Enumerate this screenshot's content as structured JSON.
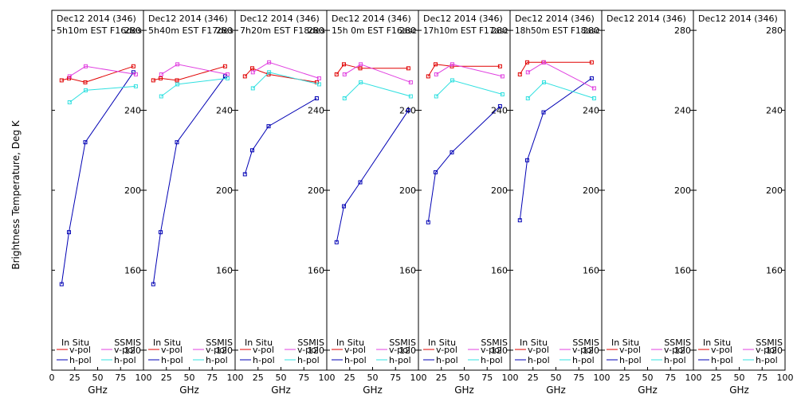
{
  "figure": {
    "ylabel": "Brightness Temperature, Deg K",
    "xlabel": "GHz",
    "legend_headers": {
      "in_situ": "In Situ",
      "ssmis": "SSMIS"
    },
    "legend_labels": {
      "vpol": "v-pol",
      "hpol": "h-pol"
    },
    "colors": {
      "insitu_v": "#e00000",
      "insitu_h": "#0000b4",
      "ssmis_v": "#e040e0",
      "ssmis_h": "#30e0e0",
      "axis": "#000000",
      "background": "#ffffff"
    }
  },
  "chart_data": {
    "type": "line",
    "title": "Dec12 2014 (346)",
    "xlabel": "GHz",
    "ylabel": "Brightness Temperature, Deg K",
    "xlim": [
      0,
      100
    ],
    "ylim": [
      110,
      290
    ],
    "x_ticks": [
      0,
      25,
      50,
      75,
      100
    ],
    "y_ticks": [
      120,
      160,
      200,
      240,
      280
    ],
    "panels": [
      {
        "title": "Dec12 2014 (346)",
        "subtitle": "5h10m EST F16des",
        "series": [
          {
            "name": "In Situ v-pol",
            "x": [
              10.7,
              18.7,
              36.5,
              89
            ],
            "y": [
              255,
              256,
              254,
              262
            ]
          },
          {
            "name": "In Situ h-pol",
            "x": [
              10.7,
              18.7,
              36.5,
              89
            ],
            "y": [
              153,
              179,
              224,
              259
            ]
          },
          {
            "name": "SSMIS v-pol",
            "x": [
              19.35,
              37,
              91.65
            ],
            "y": [
              257,
              262,
              258
            ]
          },
          {
            "name": "SSMIS h-pol",
            "x": [
              19.35,
              37,
              91.65
            ],
            "y": [
              244,
              250,
              252
            ]
          }
        ]
      },
      {
        "title": "Dec12 2014 (346)",
        "subtitle": "5h40m EST F17des",
        "series": [
          {
            "name": "In Situ v-pol",
            "x": [
              10.7,
              18.7,
              36.5,
              89
            ],
            "y": [
              255,
              256,
              255,
              262
            ]
          },
          {
            "name": "In Situ h-pol",
            "x": [
              10.7,
              18.7,
              36.5,
              89
            ],
            "y": [
              153,
              179,
              224,
              257
            ]
          },
          {
            "name": "SSMIS v-pol",
            "x": [
              19.35,
              37,
              91.65
            ],
            "y": [
              258,
              263,
              258
            ]
          },
          {
            "name": "SSMIS h-pol",
            "x": [
              19.35,
              37,
              91.65
            ],
            "y": [
              247,
              253,
              256
            ]
          }
        ]
      },
      {
        "title": "Dec12 2014 (346)",
        "subtitle": "7h20m EST F18des",
        "series": [
          {
            "name": "In Situ v-pol",
            "x": [
              10.7,
              18.7,
              36.5,
              89
            ],
            "y": [
              257,
              261,
              258,
              254
            ]
          },
          {
            "name": "In Situ h-pol",
            "x": [
              10.7,
              18.7,
              36.5,
              89
            ],
            "y": [
              208,
              220,
              232,
              246
            ]
          },
          {
            "name": "SSMIS v-pol",
            "x": [
              19.35,
              37,
              91.65
            ],
            "y": [
              259,
              264,
              256
            ]
          },
          {
            "name": "SSMIS h-pol",
            "x": [
              19.35,
              37,
              91.65
            ],
            "y": [
              251,
              259,
              253
            ]
          }
        ]
      },
      {
        "title": "Dec12 2014 (346)",
        "subtitle": "15h 0m EST F16asc",
        "series": [
          {
            "name": "In Situ v-pol",
            "x": [
              10.7,
              18.7,
              36.5,
              89
            ],
            "y": [
              258,
              263,
              261,
              261
            ]
          },
          {
            "name": "In Situ h-pol",
            "x": [
              10.7,
              18.7,
              36.5,
              89
            ],
            "y": [
              174,
              192,
              204,
              240
            ]
          },
          {
            "name": "SSMIS v-pol",
            "x": [
              19.35,
              37,
              91.65
            ],
            "y": [
              258,
              263,
              254
            ]
          },
          {
            "name": "SSMIS h-pol",
            "x": [
              19.35,
              37,
              91.65
            ],
            "y": [
              246,
              254,
              247
            ]
          }
        ]
      },
      {
        "title": "Dec12 2014 (346)",
        "subtitle": "17h10m EST F17asc",
        "series": [
          {
            "name": "In Situ v-pol",
            "x": [
              10.7,
              18.7,
              36.5,
              89
            ],
            "y": [
              257,
              263,
              262,
              262
            ]
          },
          {
            "name": "In Situ h-pol",
            "x": [
              10.7,
              18.7,
              36.5,
              89
            ],
            "y": [
              184,
              209,
              219,
              242
            ]
          },
          {
            "name": "SSMIS v-pol",
            "x": [
              19.35,
              37,
              91.65
            ],
            "y": [
              258,
              263,
              257
            ]
          },
          {
            "name": "SSMIS h-pol",
            "x": [
              19.35,
              37,
              91.65
            ],
            "y": [
              247,
              255,
              248
            ]
          }
        ]
      },
      {
        "title": "Dec12 2014 (346)",
        "subtitle": "18h50m EST F18asc",
        "series": [
          {
            "name": "In Situ v-pol",
            "x": [
              10.7,
              18.7,
              36.5,
              89
            ],
            "y": [
              258,
              264,
              264,
              264
            ]
          },
          {
            "name": "In Situ h-pol",
            "x": [
              10.7,
              18.7,
              36.5,
              89
            ],
            "y": [
              185,
              215,
              239,
              256
            ]
          },
          {
            "name": "SSMIS v-pol",
            "x": [
              19.35,
              37,
              91.65
            ],
            "y": [
              259,
              264,
              251
            ]
          },
          {
            "name": "SSMIS h-pol",
            "x": [
              19.35,
              37,
              91.65
            ],
            "y": [
              246,
              254,
              246
            ]
          }
        ]
      },
      {
        "title": "Dec12 2014 (346)",
        "subtitle": "",
        "series": []
      },
      {
        "title": "Dec12 2014 (346)",
        "subtitle": "",
        "series": []
      }
    ]
  }
}
